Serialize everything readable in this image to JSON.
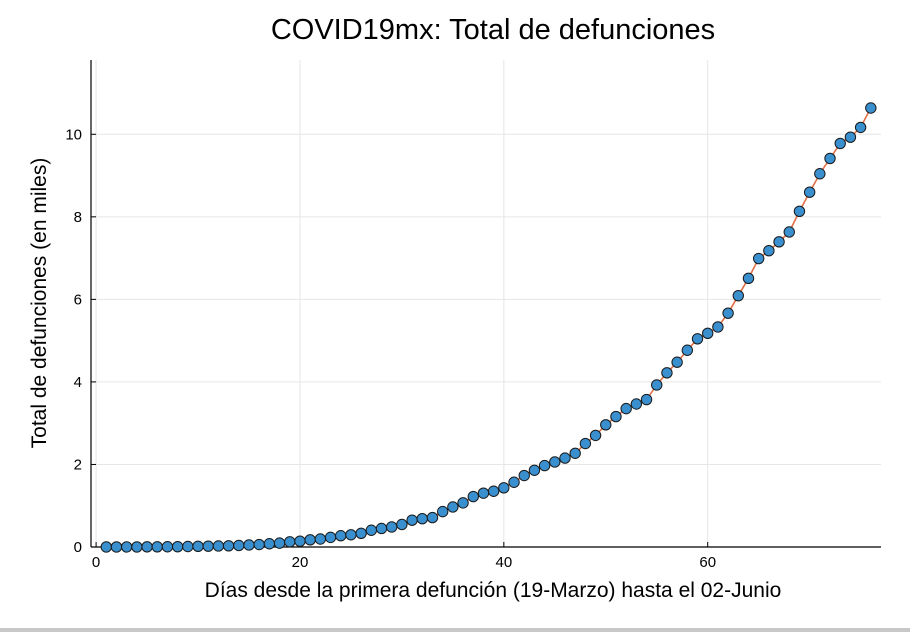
{
  "chart_data": {
    "type": "scatter",
    "title": "COVID19mx: Total de defunciones",
    "xlabel": "Días desde la primera defunción (19-Marzo) hasta el 02-Junio",
    "ylabel": "Total de defunciones (en miles)",
    "xlim": [
      -0.5,
      77
    ],
    "ylim": [
      0,
      11.8
    ],
    "xticks": [
      0,
      20,
      40,
      60
    ],
    "yticks": [
      0,
      2,
      4,
      6,
      8,
      10
    ],
    "grid": true,
    "legend": "none",
    "series": [
      {
        "line_color": "#e26f46",
        "marker_color": "#3a8fce",
        "marker_edge_color": "#1a1a1a",
        "x": [
          1,
          2,
          3,
          4,
          5,
          6,
          7,
          8,
          9,
          10,
          11,
          12,
          13,
          14,
          15,
          16,
          17,
          18,
          19,
          20,
          21,
          22,
          23,
          24,
          25,
          26,
          27,
          28,
          29,
          30,
          31,
          32,
          33,
          34,
          35,
          36,
          37,
          38,
          39,
          40,
          41,
          42,
          43,
          44,
          45,
          46,
          47,
          48,
          49,
          50,
          51,
          52,
          53,
          54,
          55,
          56,
          57,
          58,
          59,
          60,
          61,
          62,
          63,
          64,
          65,
          66,
          67,
          68,
          69,
          70,
          71,
          72,
          73,
          74,
          75,
          76
        ],
        "y": [
          0.001,
          0.001,
          0.002,
          0.002,
          0.004,
          0.005,
          0.006,
          0.008,
          0.012,
          0.016,
          0.02,
          0.025,
          0.029,
          0.037,
          0.05,
          0.06,
          0.079,
          0.094,
          0.125,
          0.141,
          0.174,
          0.194,
          0.233,
          0.273,
          0.296,
          0.332,
          0.406,
          0.449,
          0.486,
          0.546,
          0.65,
          0.686,
          0.712,
          0.857,
          0.97,
          1.069,
          1.221,
          1.305,
          1.351,
          1.434,
          1.569,
          1.732,
          1.859,
          1.972,
          2.061,
          2.154,
          2.271,
          2.507,
          2.704,
          2.961,
          3.16,
          3.353,
          3.465,
          3.573,
          3.926,
          4.22,
          4.477,
          4.767,
          5.045,
          5.177,
          5.332,
          5.666,
          6.09,
          6.51,
          6.989,
          7.179,
          7.394,
          7.633,
          8.134,
          8.597,
          9.044,
          9.415,
          9.779,
          9.93,
          10.167,
          10.637
        ]
      }
    ]
  }
}
